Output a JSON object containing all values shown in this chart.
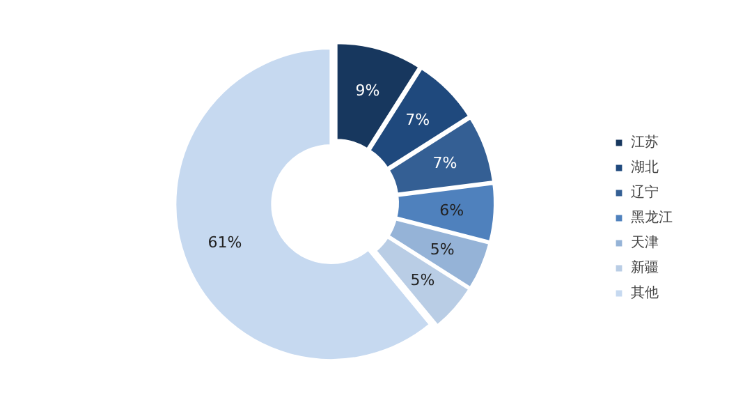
{
  "chart_data": {
    "type": "donut",
    "categories": [
      "江苏",
      "湖北",
      "辽宁",
      "黑龙江",
      "天津",
      "新疆",
      "其他"
    ],
    "values": [
      9,
      7,
      7,
      6,
      5,
      5,
      61
    ],
    "value_labels": [
      "9%",
      "7%",
      "7%",
      "6%",
      "5%",
      "5%",
      "61%"
    ],
    "colors": [
      "#17375e",
      "#1f497d",
      "#345f94",
      "#4f81bd",
      "#95b3d7",
      "#b9cde5",
      "#c6d9f0"
    ],
    "legend": "right"
  }
}
